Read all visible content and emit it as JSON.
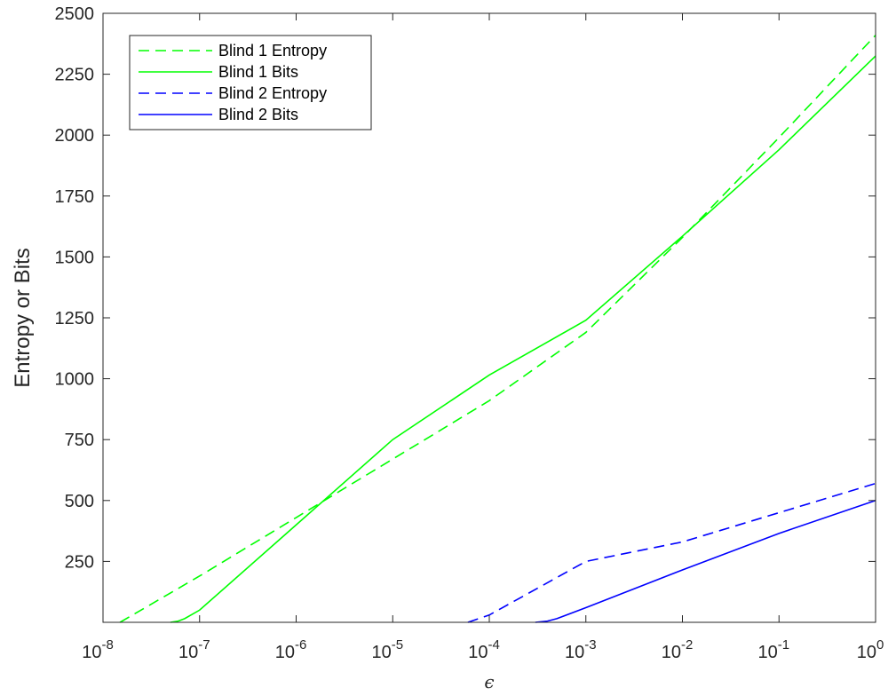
{
  "chart_data": {
    "type": "line",
    "xscale": "log",
    "xlim": [
      1e-08,
      1
    ],
    "ylim": [
      0,
      2500
    ],
    "xlabel": "ϵ",
    "ylabel": "Entropy or Bits",
    "x_ticks": [
      {
        "base": "10",
        "exp": "-8"
      },
      {
        "base": "10",
        "exp": "-7"
      },
      {
        "base": "10",
        "exp": "-6"
      },
      {
        "base": "10",
        "exp": "-5"
      },
      {
        "base": "10",
        "exp": "-4"
      },
      {
        "base": "10",
        "exp": "-3"
      },
      {
        "base": "10",
        "exp": "-2"
      },
      {
        "base": "10",
        "exp": "-1"
      },
      {
        "base": "10",
        "exp": "0"
      }
    ],
    "y_ticks": [
      "250",
      "500",
      "750",
      "1000",
      "1250",
      "1500",
      "1750",
      "2000",
      "2250",
      "2500"
    ],
    "legend_position": "top-left",
    "series": [
      {
        "name": "Blind 1 Entropy",
        "color": "#00ff00",
        "style": "dashed",
        "x": [
          1.5e-08,
          1e-07,
          1e-06,
          1e-05,
          0.0001,
          0.001,
          0.01,
          0.1,
          1
        ],
        "y": [
          0,
          190,
          430,
          670,
          910,
          1190,
          1580,
          1990,
          2410
        ]
      },
      {
        "name": "Blind 1 Bits",
        "color": "#00ff00",
        "style": "solid",
        "x": [
          5e-08,
          6e-08,
          7e-08,
          1e-07,
          1e-06,
          1e-05,
          0.0001,
          0.001,
          0.01,
          0.1,
          1
        ],
        "y": [
          0,
          5,
          15,
          50,
          400,
          750,
          1015,
          1240,
          1585,
          1940,
          2325
        ]
      },
      {
        "name": "Blind 2 Entropy",
        "color": "#0000ff",
        "style": "dashed",
        "x": [
          6e-05,
          0.0001,
          0.001,
          0.01,
          0.1,
          1
        ],
        "y": [
          0,
          30,
          250,
          330,
          450,
          570
        ]
      },
      {
        "name": "Blind 2 Bits",
        "color": "#0000ff",
        "style": "solid",
        "x": [
          0.0003,
          0.0004,
          0.0005,
          0.001,
          0.01,
          0.1,
          1
        ],
        "y": [
          0,
          5,
          15,
          60,
          215,
          365,
          500
        ]
      }
    ]
  }
}
